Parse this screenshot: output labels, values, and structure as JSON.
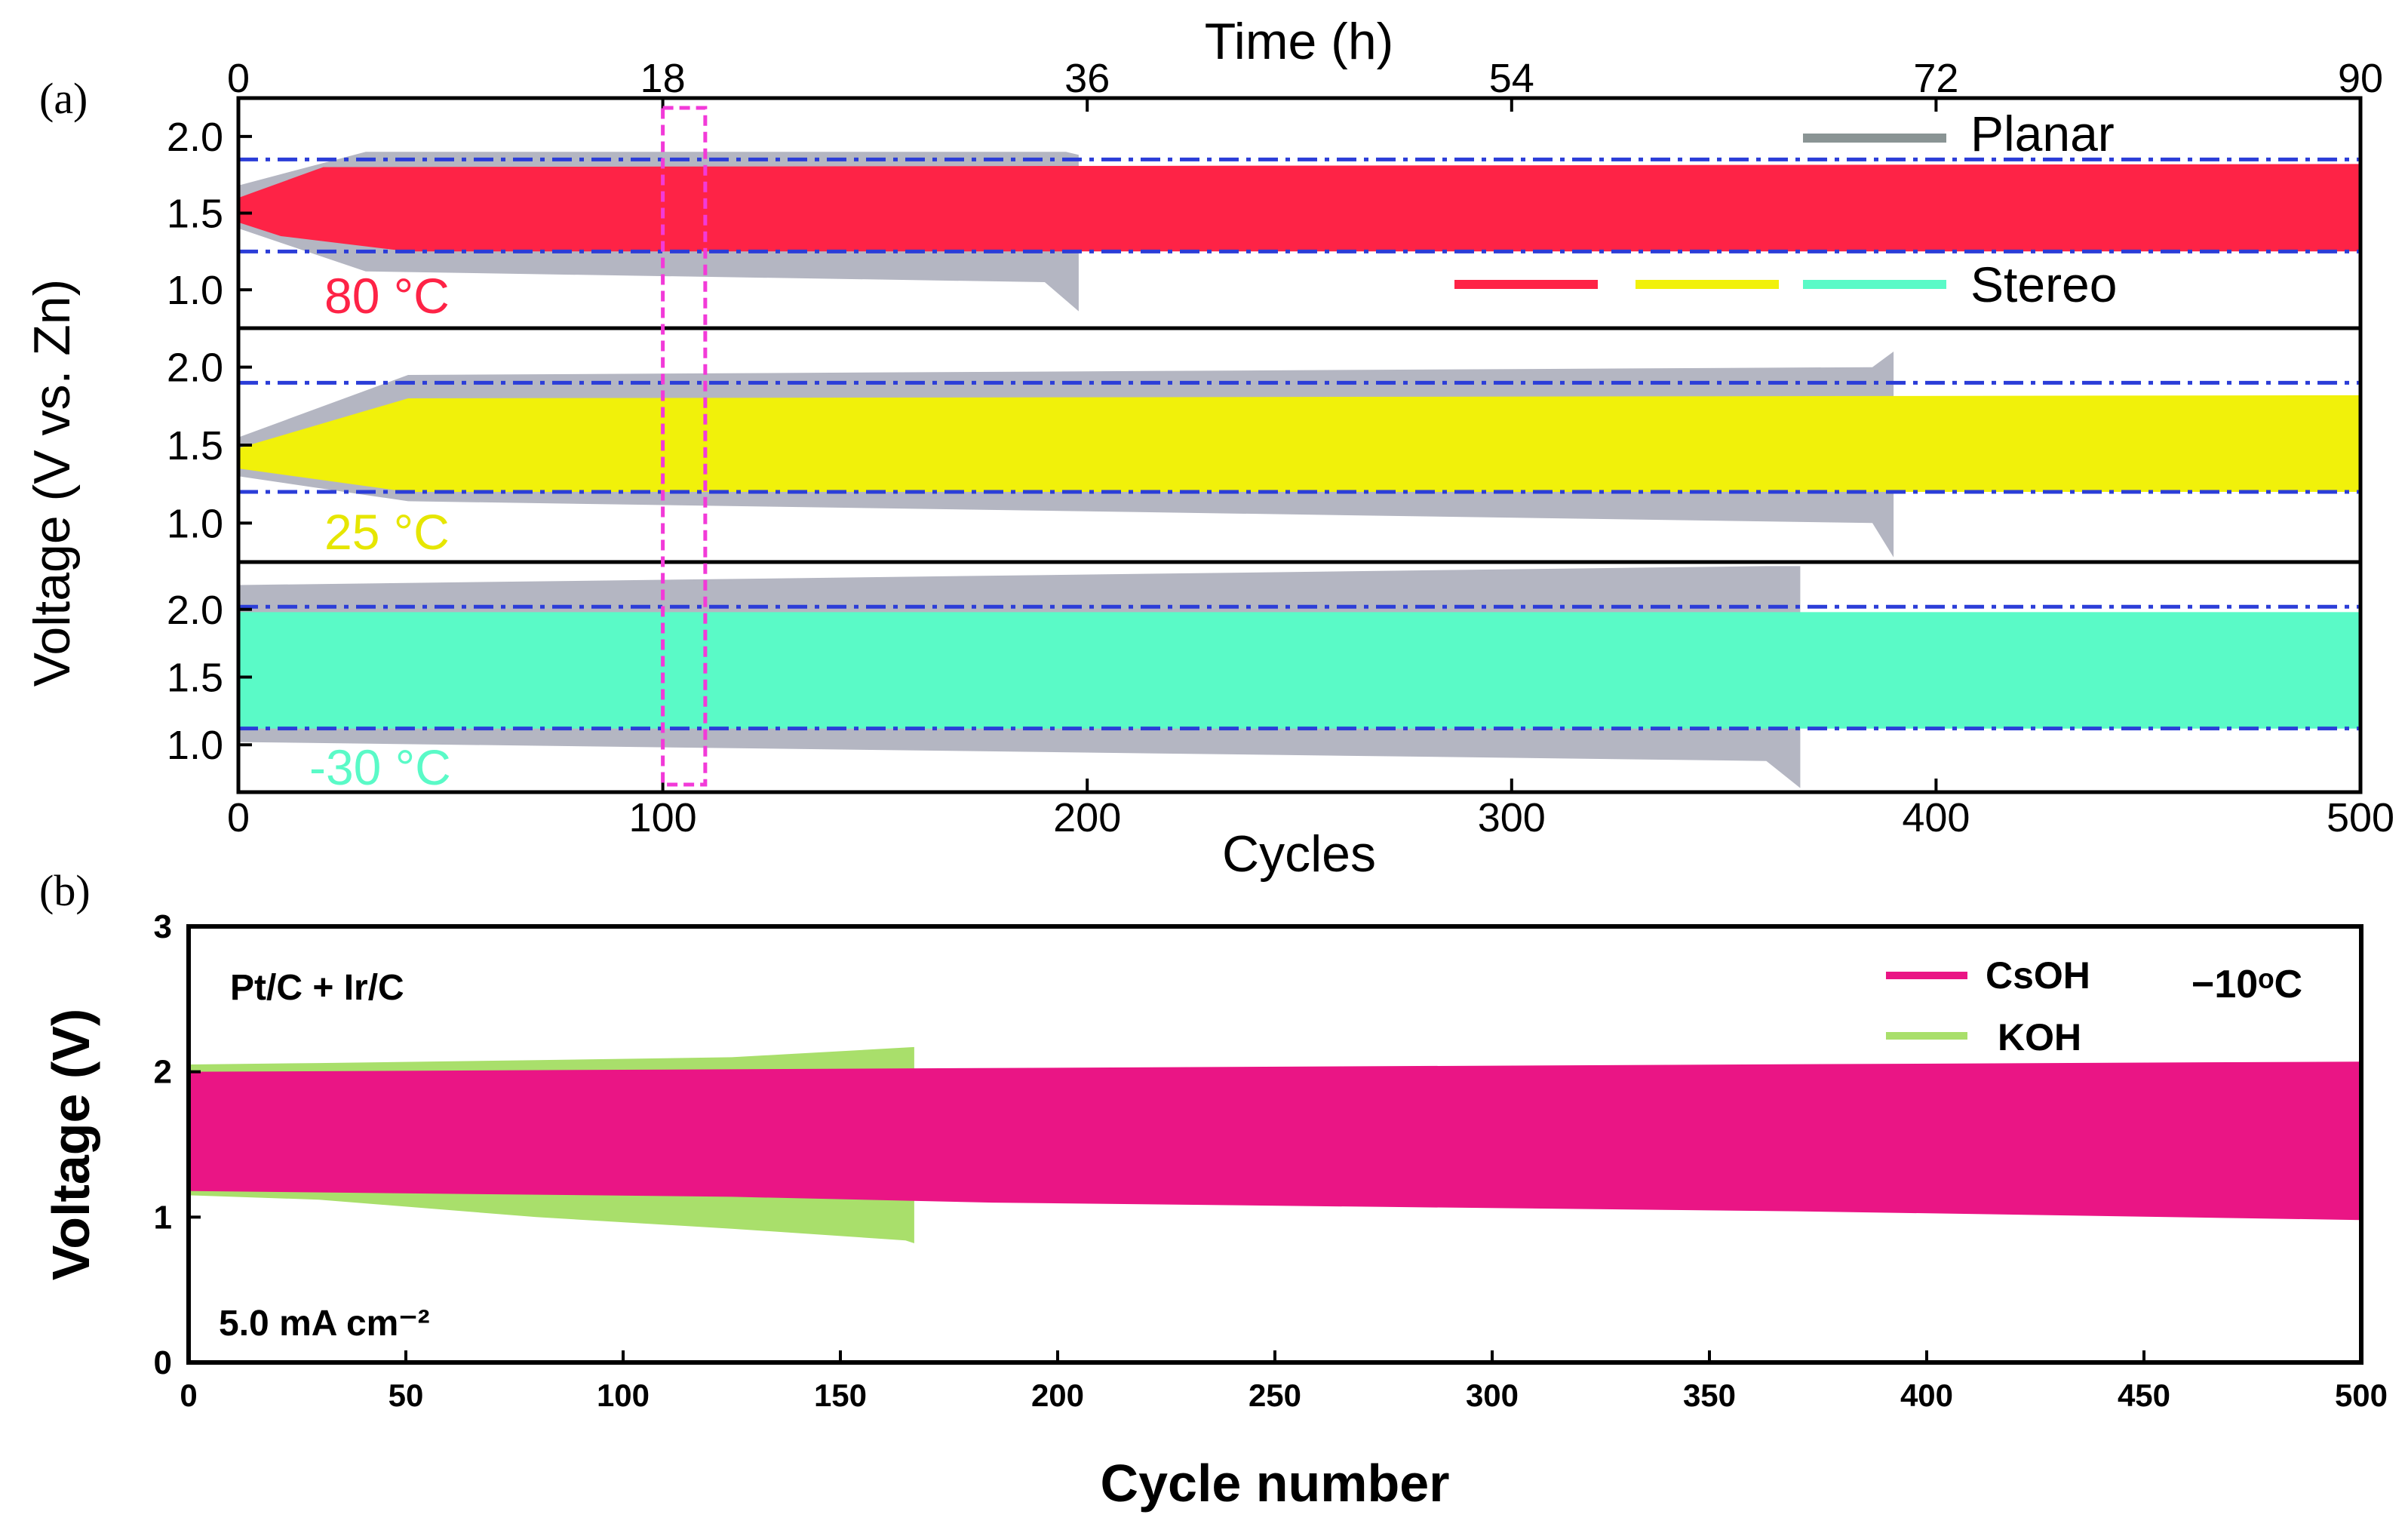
{
  "chart_data": [
    {
      "panel_label": "(a)",
      "type": "area",
      "top_axis": {
        "title": "Time (h)",
        "ticks": [
          "0",
          "18",
          "36",
          "54",
          "72",
          "90"
        ],
        "range": [
          0,
          90
        ]
      },
      "x_axis": {
        "title": "Cycles",
        "ticks": [
          "0",
          "100",
          "200",
          "300",
          "400",
          "500"
        ],
        "range": [
          0,
          500
        ]
      },
      "y_label": "Voltage (V vs. Zn)",
      "legend": {
        "planar": "Planar",
        "stereo": "Stereo"
      },
      "highlight_cycles": [
        100,
        110
      ],
      "subplots": [
        {
          "temp_label": "80 °C",
          "color": "#fe2346",
          "ylim": [
            0.75,
            2.25
          ],
          "yticks": [
            "1.0",
            "1.5",
            "2.0"
          ],
          "ref_lines": [
            1.25,
            1.85
          ],
          "stereo": {
            "lower": [
              [
                0,
                1.44
              ],
              [
                10,
                1.35
              ],
              [
                40,
                1.25
              ],
              [
                500,
                1.25
              ]
            ],
            "upper": [
              [
                0,
                1.6
              ],
              [
                20,
                1.8
              ],
              [
                500,
                1.82
              ]
            ]
          },
          "planar": {
            "end_cycle": 200,
            "lower": [
              [
                0,
                1.4
              ],
              [
                30,
                1.12
              ],
              [
                190,
                1.05
              ],
              [
                198,
                0.86
              ]
            ],
            "upper": [
              [
                0,
                1.68
              ],
              [
                30,
                1.9
              ],
              [
                195,
                1.9
              ],
              [
                198,
                1.88
              ]
            ]
          }
        },
        {
          "temp_label": "25 °C",
          "color": "#f1f10a",
          "ylim": [
            0.75,
            2.25
          ],
          "yticks": [
            "1.0",
            "1.5",
            "2.0"
          ],
          "ref_lines": [
            1.2,
            1.9
          ],
          "stereo": {
            "lower": [
              [
                0,
                1.35
              ],
              [
                40,
                1.2
              ],
              [
                500,
                1.2
              ]
            ],
            "upper": [
              [
                0,
                1.48
              ],
              [
                40,
                1.8
              ],
              [
                500,
                1.82
              ]
            ]
          },
          "planar": {
            "end_cycle": 390,
            "lower": [
              [
                0,
                1.3
              ],
              [
                40,
                1.14
              ],
              [
                385,
                1.0
              ],
              [
                390,
                0.78
              ]
            ],
            "upper": [
              [
                0,
                1.55
              ],
              [
                40,
                1.95
              ],
              [
                385,
                2.0
              ],
              [
                390,
                2.1
              ]
            ]
          }
        },
        {
          "temp_label": "-30 °C",
          "color": "#5afac7",
          "ylim": [
            0.65,
            2.35
          ],
          "yticks": [
            "1.0",
            "1.5",
            "2.0"
          ],
          "ref_lines": [
            1.12,
            2.02
          ],
          "stereo": {
            "lower": [
              [
                0,
                1.12
              ],
              [
                500,
                1.12
              ]
            ],
            "upper": [
              [
                0,
                1.98
              ],
              [
                500,
                1.98
              ]
            ]
          },
          "planar": {
            "end_cycle": 368,
            "lower": [
              [
                0,
                1.02
              ],
              [
                360,
                0.88
              ],
              [
                368,
                0.68
              ]
            ],
            "upper": [
              [
                0,
                2.18
              ],
              [
                360,
                2.32
              ],
              [
                368,
                2.32
              ]
            ]
          }
        }
      ]
    },
    {
      "panel_label": "(b)",
      "type": "area",
      "xlabel": "Cycle number",
      "ylabel": "Voltage (V)",
      "xlim": [
        0,
        500
      ],
      "ylim": [
        0,
        3
      ],
      "xticks": [
        "0",
        "50",
        "100",
        "150",
        "200",
        "250",
        "300",
        "350",
        "400",
        "450",
        "500"
      ],
      "yticks": [
        "0",
        "1",
        "2",
        "3"
      ],
      "annotations": {
        "catalyst": "Pt/C + Ir/C",
        "temperature": "−10ᵒC",
        "current_density": "5.0 mA cm⁻²"
      },
      "series": [
        {
          "name": "KOH",
          "color": "#a9df6b",
          "lower": [
            [
              0,
              1.15
            ],
            [
              30,
              1.12
            ],
            [
              80,
              1.0
            ],
            [
              125,
              0.92
            ],
            [
              165,
              0.84
            ],
            [
              167,
              0.82
            ]
          ],
          "upper": [
            [
              0,
              2.05
            ],
            [
              30,
              2.06
            ],
            [
              80,
              2.08
            ],
            [
              125,
              2.1
            ],
            [
              167,
              2.17
            ]
          ]
        },
        {
          "name": "CsOH",
          "color": "#ea1585",
          "lower": [
            [
              0,
              1.18
            ],
            [
              125,
              1.14
            ],
            [
              185,
              1.1
            ],
            [
              275,
              1.07
            ],
            [
              370,
              1.04
            ],
            [
              500,
              0.98
            ]
          ],
          "upper": [
            [
              0,
              2.0
            ],
            [
              500,
              2.07
            ]
          ]
        }
      ]
    }
  ]
}
